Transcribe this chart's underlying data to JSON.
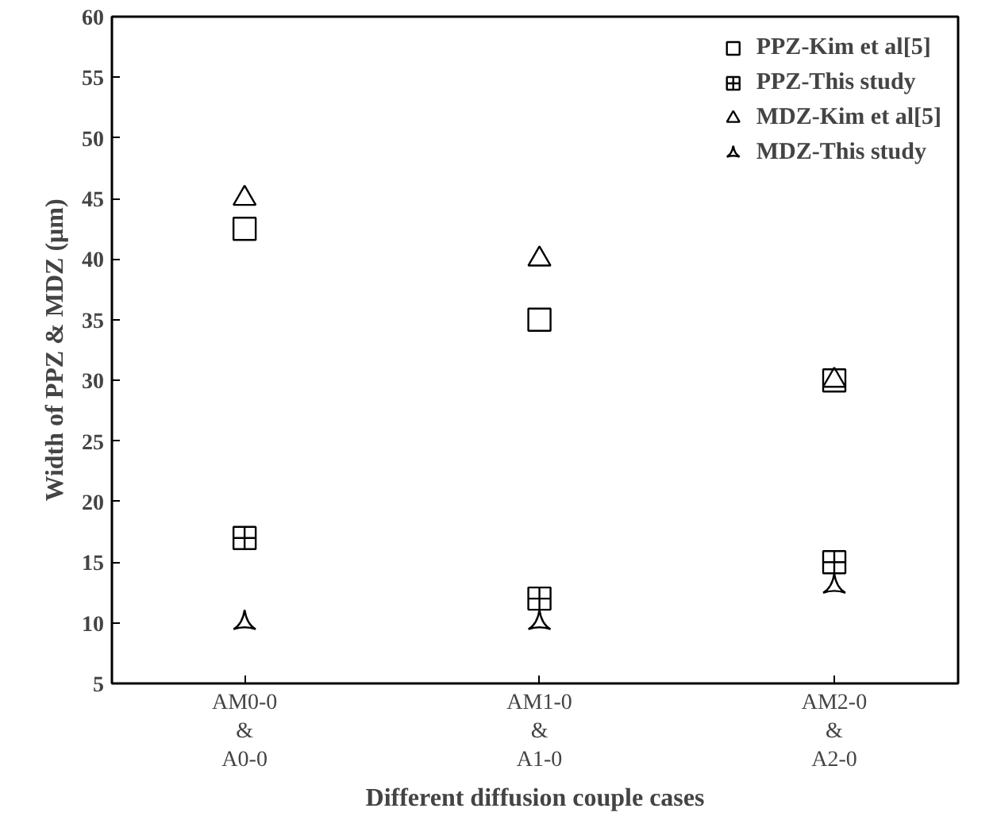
{
  "chart_data": {
    "type": "scatter",
    "xlabel": "Different diffusion couple cases",
    "ylabel": "Width of PPZ & MDZ (μm)",
    "categories": [
      "AM0-0\n&\nA0-0",
      "AM1-0\n&\nA1-0",
      "AM2-0\n&\nA2-0"
    ],
    "series": [
      {
        "name": "PPZ-Kim et al[5]",
        "color": "#000000",
        "marker": "square",
        "values": [
          42.5,
          35,
          30
        ]
      },
      {
        "name": "PPZ-This study",
        "color": "#000000",
        "marker": "cross",
        "values": [
          17,
          12,
          15
        ]
      },
      {
        "name": "MDZ-Kim et al[5]",
        "color": "#000000",
        "marker": "triangle",
        "values": [
          45,
          40,
          30
        ]
      },
      {
        "name": "MDZ-This study",
        "color": "#000000",
        "marker": "triangle_pin",
        "values": [
          10,
          10,
          13
        ]
      }
    ],
    "ylim": [
      5,
      60
    ],
    "yticks": [
      5,
      10,
      15,
      20,
      25,
      30,
      35,
      40,
      45,
      50,
      55,
      60
    ],
    "grid": false,
    "legend": "top right"
  }
}
